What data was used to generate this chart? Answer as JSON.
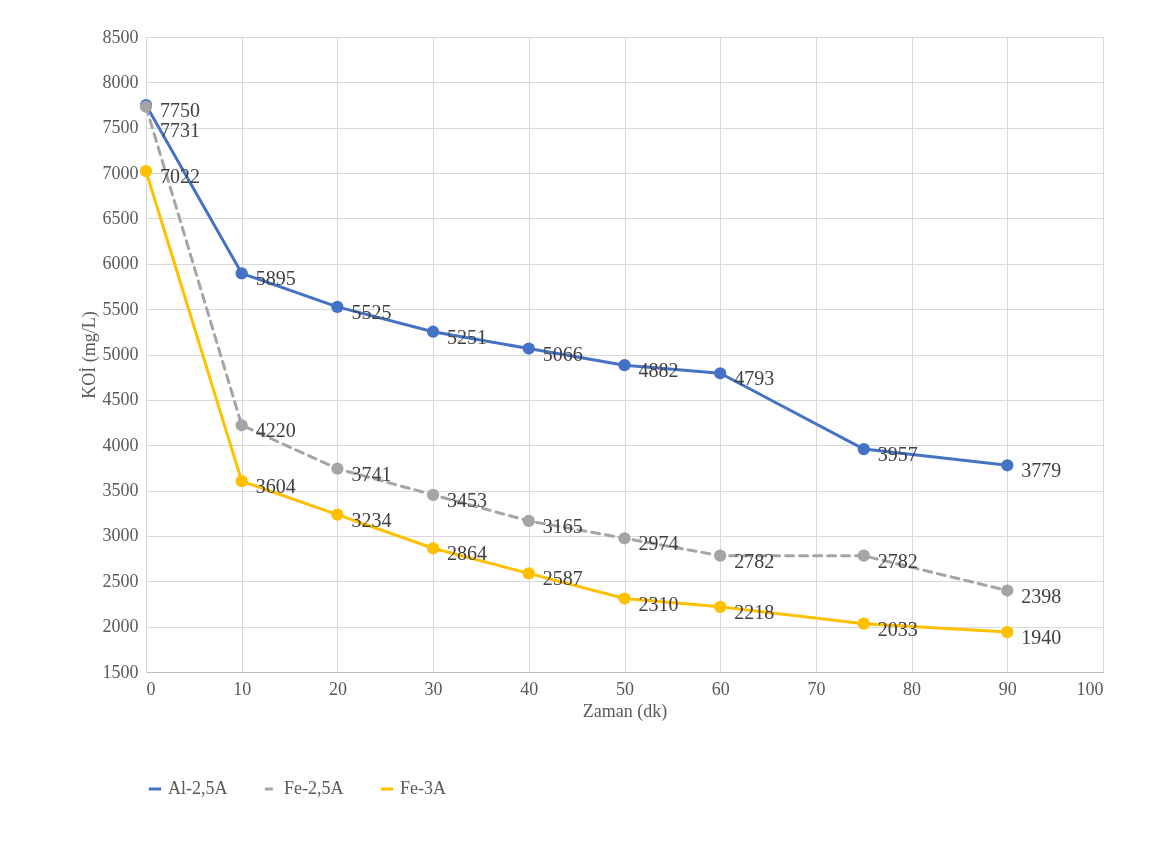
{
  "chart_data": {
    "type": "line",
    "xlabel": "Zaman (dk)",
    "ylabel": "KOİ (mg/L)",
    "x": [
      0,
      10,
      20,
      30,
      40,
      50,
      60,
      75,
      90
    ],
    "series": [
      {
        "name": "Al-2,5A",
        "color": "#4472c4",
        "line_style": "solid",
        "marker": "circle",
        "values": [
          7750,
          5895,
          5525,
          5251,
          5066,
          4882,
          4793,
          3957,
          3779
        ]
      },
      {
        "name": "Fe-2,5A",
        "color": "#a5a5a5",
        "line_style": "dashed",
        "marker": "circle",
        "values": [
          7731,
          4220,
          3741,
          3453,
          3165,
          2974,
          2782,
          2782,
          2398
        ]
      },
      {
        "name": "Fe-3A",
        "color": "#ffc000",
        "line_style": "solid",
        "marker": "circle",
        "values": [
          7022,
          3604,
          3234,
          2864,
          2587,
          2310,
          2218,
          2033,
          1940
        ]
      }
    ],
    "xlim": [
      0,
      100
    ],
    "xticks": [
      0,
      10,
      20,
      30,
      40,
      50,
      60,
      70,
      80,
      90,
      100
    ],
    "ylim": [
      1500,
      8500
    ],
    "yticks": [
      1500,
      2000,
      2500,
      3000,
      3500,
      4000,
      4500,
      5000,
      5500,
      6000,
      6500,
      7000,
      7500,
      8000,
      8500
    ],
    "grid": true,
    "legend": "bottom",
    "data_labels": true
  }
}
